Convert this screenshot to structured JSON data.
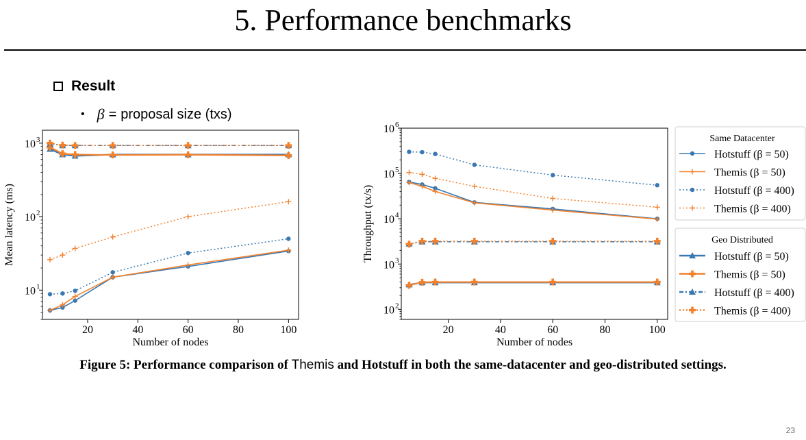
{
  "slide": {
    "title": "5. Performance benchmarks",
    "bullet_main": "Result",
    "bullet_sub_symbol": "β",
    "bullet_sub_eq": "=",
    "bullet_sub_text": "proposal size (txs)",
    "caption_part1": "Figure 5: Performance comparison of",
    "caption_themis": "Themis",
    "caption_and": "and Hotstuff in both the same-datacenter and geo-distributed settings.",
    "page_number": "23"
  },
  "colors": {
    "blue": "#3a78b1",
    "orange": "#f2812d"
  },
  "legend": {
    "group1_title": "Same Datacenter",
    "group2_title": "Geo Distributed",
    "group1": [
      "Hotstuff (β = 50)",
      "Themis (β = 50)",
      "Hotstuff (β = 400)",
      "Themis (β = 400)"
    ],
    "group2": [
      "Hotstuff (β = 50)",
      "Themis (β = 50)",
      "Hotstuff (β = 400)",
      "Themis (β = 400)"
    ]
  },
  "chart_data": [
    {
      "type": "line",
      "xlabel": "Number of nodes",
      "ylabel": "Mean latency (ms)",
      "yscale": "log",
      "xlim": [
        2,
        104
      ],
      "ylim": [
        4,
        1500
      ],
      "xticks": [
        20,
        40,
        60,
        80,
        100
      ],
      "yticks": [
        {
          "value": 10,
          "label": "10"
        },
        {
          "value": 100,
          "label": "10"
        },
        {
          "value": 1000,
          "label": "10"
        }
      ],
      "ytick_exponents": [
        "1",
        "2",
        "3"
      ],
      "x": [
        5,
        10,
        15,
        30,
        60,
        100
      ],
      "series": [
        {
          "name": "Hotstuff (β = 50) Same Datacenter",
          "color": "blue",
          "style": "solid",
          "marker": "circle",
          "values": [
            5.3,
            5.8,
            7.2,
            15,
            21,
            34
          ]
        },
        {
          "name": "Themis (β = 50) Same Datacenter",
          "color": "orange",
          "style": "solid",
          "marker": "plus",
          "values": [
            5.3,
            6.3,
            8.2,
            15,
            22,
            35
          ]
        },
        {
          "name": "Hotstuff (β = 400) Same Datacenter",
          "color": "blue",
          "style": "dotted",
          "marker": "circle",
          "values": [
            8.8,
            9.0,
            9.8,
            17.5,
            32,
            50
          ]
        },
        {
          "name": "Themis (β = 400) Same Datacenter",
          "color": "orange",
          "style": "dotted",
          "marker": "plus",
          "values": [
            26,
            30,
            37,
            53,
            100,
            160
          ]
        },
        {
          "name": "Hotstuff (β = 50) Geo Distributed",
          "color": "blue",
          "style": "solid",
          "marker": "triangle",
          "values": [
            830,
            700,
            670,
            700,
            700,
            700
          ]
        },
        {
          "name": "Themis (β = 50) Geo Distributed",
          "color": "orange",
          "style": "solid",
          "marker": "plusbold",
          "values": [
            880,
            720,
            700,
            690,
            695,
            680
          ]
        },
        {
          "name": "Hotstuff (β = 400) Geo Distributed",
          "color": "blue",
          "style": "dashdot",
          "marker": "triangle",
          "values": [
            980,
            930,
            930,
            930,
            930,
            930
          ]
        },
        {
          "name": "Themis (β = 400) Geo Distributed",
          "color": "orange",
          "style": "dotted",
          "marker": "plusbold",
          "values": [
            1000,
            940,
            930,
            930,
            930,
            930
          ]
        }
      ]
    },
    {
      "type": "line",
      "xlabel": "Number of nodes",
      "ylabel": "Throughput (tx/s)",
      "yscale": "log",
      "xlim": [
        2,
        104
      ],
      "ylim": [
        60,
        1000000
      ],
      "xticks": [
        20,
        40,
        60,
        80,
        100
      ],
      "yticks": [
        {
          "value": 100,
          "label": "10"
        },
        {
          "value": 1000,
          "label": "10"
        },
        {
          "value": 10000,
          "label": "10"
        },
        {
          "value": 100000,
          "label": "10"
        },
        {
          "value": 1000000,
          "label": "10"
        }
      ],
      "ytick_exponents": [
        "2",
        "3",
        "4",
        "5",
        "6"
      ],
      "x": [
        5,
        10,
        15,
        30,
        60,
        100
      ],
      "series": [
        {
          "name": "Hotstuff (β = 50) Same Datacenter",
          "color": "blue",
          "style": "solid",
          "marker": "circle",
          "values": [
            65000,
            57000,
            47000,
            23000,
            16500,
            10000
          ]
        },
        {
          "name": "Themis (β = 50) Same Datacenter",
          "color": "orange",
          "style": "solid",
          "marker": "plus",
          "values": [
            63000,
            52000,
            40000,
            22500,
            15500,
            9800
          ]
        },
        {
          "name": "Hotstuff (β = 400) Same Datacenter",
          "color": "blue",
          "style": "dotted",
          "marker": "circle",
          "values": [
            300000,
            295000,
            270000,
            155000,
            92000,
            55000
          ]
        },
        {
          "name": "Themis (β = 400) Same Datacenter",
          "color": "orange",
          "style": "dotted",
          "marker": "plus",
          "values": [
            105000,
            96000,
            78000,
            52000,
            28000,
            18000
          ]
        },
        {
          "name": "Hotstuff (β = 50) Geo Distributed",
          "color": "blue",
          "style": "solid",
          "marker": "triangle",
          "values": [
            350,
            390,
            390,
            390,
            390,
            390
          ]
        },
        {
          "name": "Themis (β = 50) Geo Distributed",
          "color": "orange",
          "style": "solid",
          "marker": "plusbold",
          "values": [
            340,
            395,
            400,
            400,
            400,
            400
          ]
        },
        {
          "name": "Hotstuff (β = 400) Geo Distributed",
          "color": "blue",
          "style": "dashdot",
          "marker": "triangle",
          "values": [
            2800,
            3100,
            3100,
            3100,
            3100,
            3100
          ]
        },
        {
          "name": "Themis (β = 400) Geo Distributed",
          "color": "orange",
          "style": "dotted",
          "marker": "plusbold",
          "values": [
            2750,
            3200,
            3200,
            3200,
            3200,
            3200
          ]
        }
      ]
    }
  ]
}
